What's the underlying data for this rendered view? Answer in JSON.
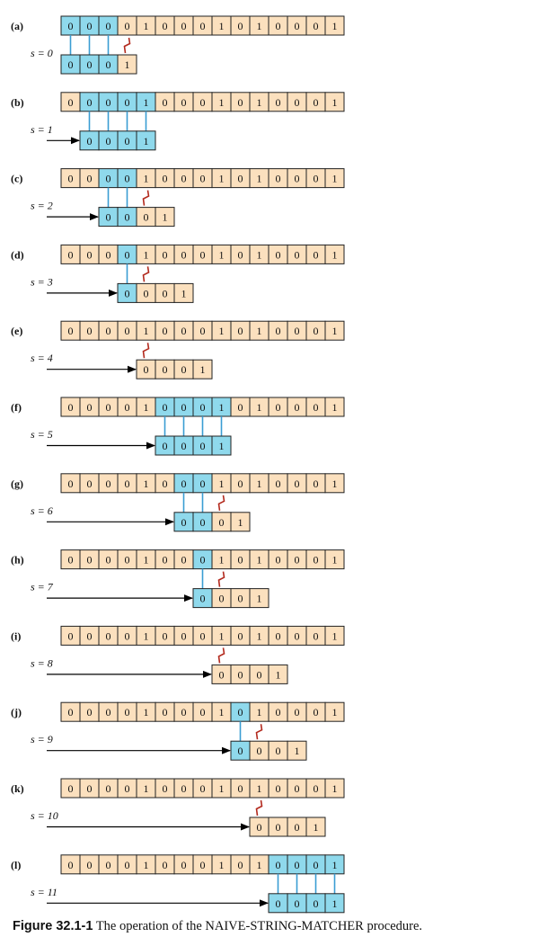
{
  "colors": {
    "text_cell": "#fbe0be",
    "matched": "#8fd9ec",
    "border": "#222222",
    "connector": "#3a9dd3",
    "mismatch": "#b32a1e",
    "arrow": "#000000"
  },
  "text": [
    "0",
    "0",
    "0",
    "0",
    "1",
    "0",
    "0",
    "0",
    "1",
    "0",
    "1",
    "0",
    "0",
    "0",
    "1"
  ],
  "pattern": [
    "0",
    "0",
    "0",
    "1"
  ],
  "panels": [
    {
      "label": "(a)",
      "shift_label": "s = 0",
      "shift": 0,
      "matched": 3,
      "mismatch": true
    },
    {
      "label": "(b)",
      "shift_label": "s = 1",
      "shift": 1,
      "matched": 4,
      "mismatch": false
    },
    {
      "label": "(c)",
      "shift_label": "s = 2",
      "shift": 2,
      "matched": 2,
      "mismatch": true
    },
    {
      "label": "(d)",
      "shift_label": "s = 3",
      "shift": 3,
      "matched": 1,
      "mismatch": true
    },
    {
      "label": "(e)",
      "shift_label": "s = 4",
      "shift": 4,
      "matched": 0,
      "mismatch": true
    },
    {
      "label": "(f)",
      "shift_label": "s = 5",
      "shift": 5,
      "matched": 4,
      "mismatch": false
    },
    {
      "label": "(g)",
      "shift_label": "s = 6",
      "shift": 6,
      "matched": 2,
      "mismatch": true
    },
    {
      "label": "(h)",
      "shift_label": "s = 7",
      "shift": 7,
      "matched": 1,
      "mismatch": true
    },
    {
      "label": "(i)",
      "shift_label": "s = 8",
      "shift": 8,
      "matched": 0,
      "mismatch": true
    },
    {
      "label": "(j)",
      "shift_label": "s = 9",
      "shift": 9,
      "matched": 1,
      "mismatch": true
    },
    {
      "label": "(k)",
      "shift_label": "s = 10",
      "shift": 10,
      "matched": 0,
      "mismatch": true
    },
    {
      "label": "(l)",
      "shift_label": "s = 11",
      "shift": 11,
      "matched": 4,
      "mismatch": false
    }
  ],
  "caption": {
    "label": "Figure 32.1-1",
    "text": " The operation of the NAIVE-STRING-MATCHER procedure."
  }
}
